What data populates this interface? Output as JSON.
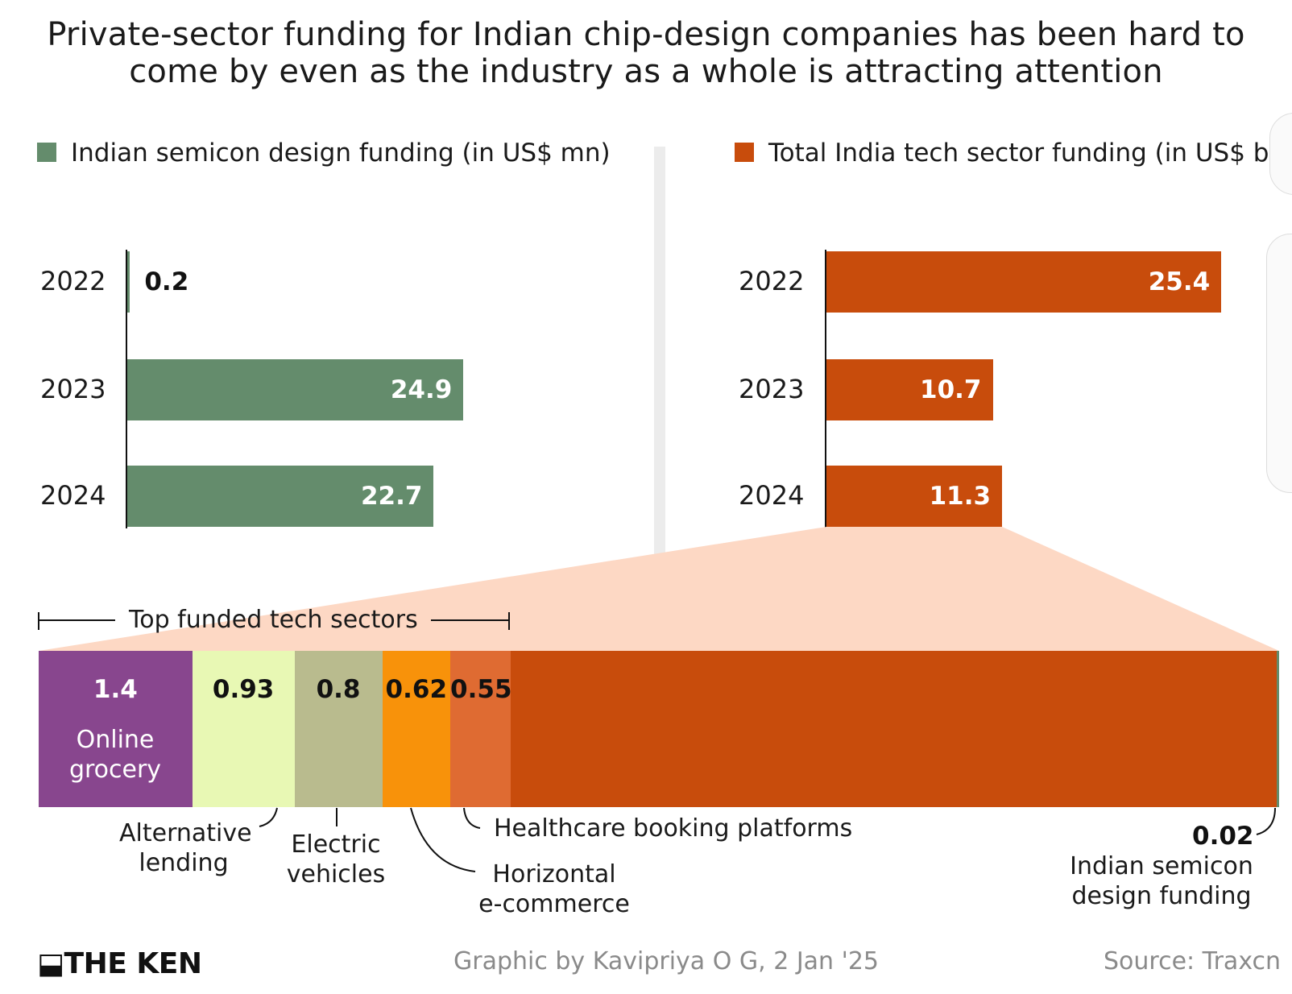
{
  "title": {
    "line1": "Private-sector funding for Indian chip-design companies has been hard to",
    "line2": "come by even as the industry as a whole is attracting attention"
  },
  "colors": {
    "green": "#648c6c",
    "orange": "#c84c0c",
    "purple": "#88468e",
    "light_green": "#e8f8b4",
    "khaki": "#b9bb8e",
    "bright_orange": "#f8920a",
    "mid_orange": "#df6b32",
    "peach": "#fdd8c4"
  },
  "chart_data": [
    {
      "type": "bar",
      "orientation": "horizontal",
      "legend": "Indian semicon design funding (in US$ mn)",
      "categories": [
        "2022",
        "2023",
        "2024"
      ],
      "values": [
        0.2,
        24.9,
        22.7
      ],
      "labels": [
        "0.2",
        "24.9",
        "22.7"
      ],
      "color": "#648c6c"
    },
    {
      "type": "bar",
      "orientation": "horizontal",
      "legend": "Total India tech sector funding (in US$ bn)",
      "categories": [
        "2022",
        "2023",
        "2024"
      ],
      "values": [
        25.4,
        10.7,
        11.3
      ],
      "labels": [
        "25.4",
        "10.7",
        "11.3"
      ],
      "color": "#c84c0c"
    },
    {
      "type": "bar",
      "orientation": "stacked-horizontal",
      "total": 11.3,
      "scope_label": "Top funded tech sectors",
      "segments": [
        {
          "name": "Online grocery",
          "value": 1.4,
          "label": "1.4",
          "color": "#88468e"
        },
        {
          "name": "Alternative lending",
          "value": 0.93,
          "label": "0.93",
          "color": "#e8f8b4"
        },
        {
          "name": "Electric vehicles",
          "value": 0.8,
          "label": "0.8",
          "color": "#b9bb8e"
        },
        {
          "name": "Horizontal e-commerce",
          "value": 0.62,
          "label": "0.62",
          "color": "#f8920a"
        },
        {
          "name": "Healthcare booking platforms",
          "value": 0.55,
          "label": "0.55",
          "color": "#df6b32"
        }
      ],
      "highlight": {
        "name": "Indian semicon design funding",
        "value": 0.02,
        "label": "0.02"
      }
    }
  ],
  "annotations": {
    "alt_lending": [
      "Alternative",
      "lending"
    ],
    "ev": [
      "Electric",
      "vehicles"
    ],
    "horizontal": [
      "Horizontal",
      "e-commerce"
    ],
    "healthcare": "Healthcare booking platforms",
    "online_grocery": [
      "Online",
      "grocery"
    ],
    "semicon": [
      "Indian semicon",
      "design funding"
    ]
  },
  "footer": {
    "logo": "THE KEN",
    "credit": "Graphic by Kavipriya O G, 2 Jan '25",
    "source": "Source: Traxcn"
  }
}
